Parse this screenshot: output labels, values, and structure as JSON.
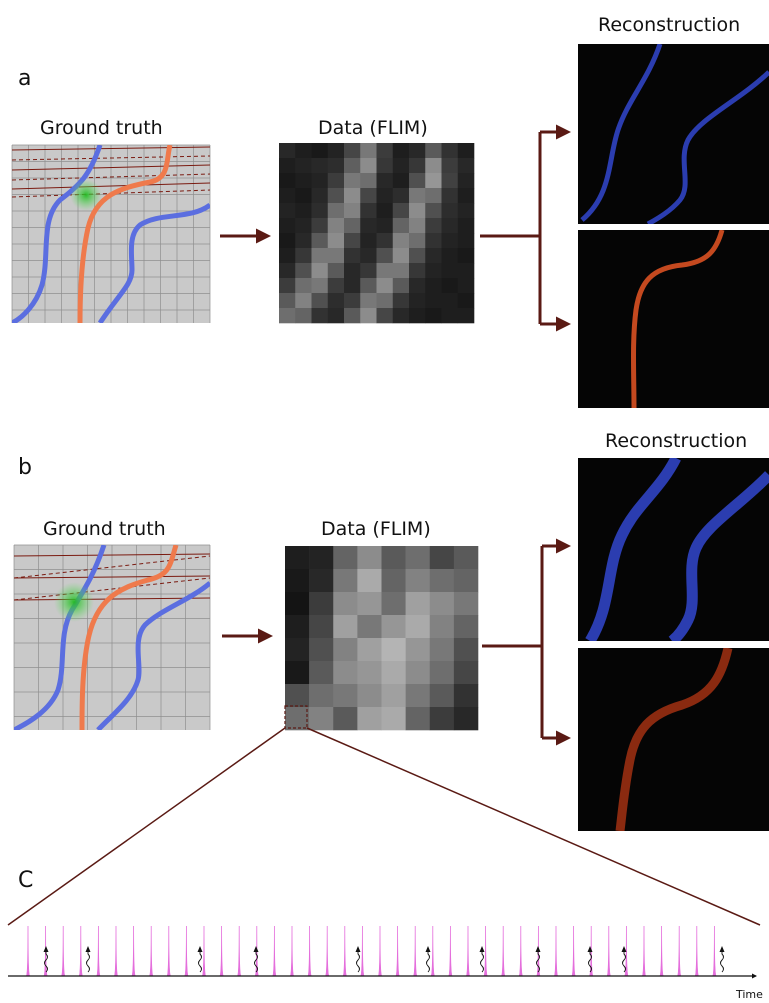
{
  "panel_a": {
    "letter": "a",
    "ground_truth_title": "Ground truth",
    "data_title": "Data (FLIM)",
    "reconstruction_title": "Reconstruction"
  },
  "panel_b": {
    "letter": "b",
    "ground_truth_title": "Ground truth",
    "data_title": "Data (FLIM)",
    "reconstruction_title": "Reconstruction"
  },
  "panel_c": {
    "letter": "C",
    "time_label": "Time"
  },
  "colors": {
    "blue_fiber": "#5b6ee0",
    "orange_fiber": "#ef7a4c",
    "recon_blue": "#2b3db0",
    "recon_orange": "#c4491f",
    "arrow": "#5a1a14",
    "grid_bg": "#c9c9c9",
    "laser_pulse": "#e055d6",
    "excitation_spot": "#33cc33"
  },
  "flim_a_pixels": [
    [
      40,
      30,
      25,
      35,
      70,
      120,
      60,
      30,
      40,
      90,
      50,
      30
    ],
    [
      30,
      35,
      40,
      45,
      95,
      140,
      55,
      35,
      55,
      140,
      60,
      40
    ],
    [
      25,
      30,
      35,
      60,
      120,
      110,
      40,
      30,
      80,
      150,
      65,
      35
    ],
    [
      30,
      25,
      40,
      80,
      140,
      70,
      35,
      45,
      120,
      110,
      50,
      30
    ],
    [
      35,
      30,
      45,
      110,
      130,
      50,
      30,
      70,
      140,
      80,
      45,
      35
    ],
    [
      30,
      35,
      60,
      130,
      100,
      40,
      35,
      100,
      130,
      60,
      40,
      30
    ],
    [
      25,
      40,
      90,
      140,
      70,
      35,
      50,
      130,
      110,
      50,
      35,
      30
    ],
    [
      30,
      55,
      120,
      120,
      50,
      40,
      80,
      140,
      80,
      40,
      30,
      25
    ],
    [
      40,
      80,
      140,
      90,
      40,
      55,
      120,
      120,
      55,
      35,
      30,
      30
    ],
    [
      60,
      110,
      120,
      60,
      40,
      90,
      140,
      90,
      40,
      30,
      25,
      30
    ],
    [
      90,
      130,
      80,
      45,
      60,
      120,
      110,
      55,
      35,
      30,
      30,
      25
    ],
    [
      110,
      100,
      50,
      40,
      90,
      140,
      70,
      40,
      30,
      25,
      30,
      30
    ]
  ],
  "flim_b_pixels": [
    [
      30,
      35,
      100,
      140,
      90,
      110,
      70,
      90
    ],
    [
      25,
      40,
      120,
      170,
      100,
      130,
      110,
      100
    ],
    [
      20,
      60,
      140,
      150,
      110,
      160,
      140,
      120
    ],
    [
      30,
      70,
      160,
      120,
      150,
      170,
      130,
      100
    ],
    [
      35,
      80,
      130,
      160,
      180,
      150,
      120,
      80
    ],
    [
      25,
      90,
      140,
      150,
      170,
      140,
      110,
      70
    ],
    [
      80,
      110,
      120,
      140,
      160,
      120,
      90,
      50
    ],
    [
      110,
      130,
      90,
      160,
      170,
      100,
      60,
      40
    ]
  ]
}
